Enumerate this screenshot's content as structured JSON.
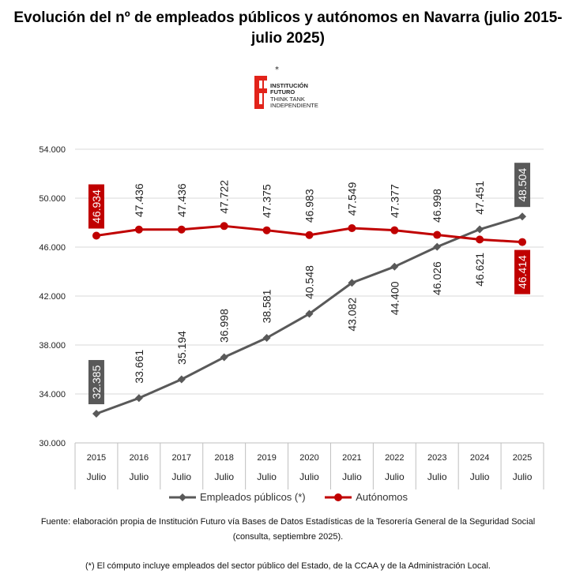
{
  "title": "Evolución del nº de empleados públicos y autónomos en Navarra (julio 2015-julio 2025)",
  "logo": {
    "line1": "INSTITUCIÓN",
    "line2": "FUTURO",
    "line3": "THINK TANK",
    "line4": "INDEPENDIENTE",
    "star": "*",
    "color": "#e2231a"
  },
  "chart_data": {
    "type": "line",
    "categories": [
      "2015",
      "2016",
      "2017",
      "2018",
      "2019",
      "2020",
      "2021",
      "2022",
      "2023",
      "2024",
      "2025"
    ],
    "subcategories": [
      "Julio",
      "Julio",
      "Julio",
      "Julio",
      "Julio",
      "Julio",
      "Julio",
      "Julio",
      "Julio",
      "Julio",
      "Julio"
    ],
    "ylim": [
      30000,
      54000
    ],
    "yticks": [
      30000,
      34000,
      38000,
      42000,
      46000,
      50000,
      54000
    ],
    "ytick_labels": [
      "30.000",
      "34.000",
      "38.000",
      "42.000",
      "46.000",
      "50.000",
      "54.000"
    ],
    "grid": true,
    "legend_position": "bottom",
    "series": [
      {
        "name": "Empleados públicos (*)",
        "color": "#595959",
        "marker": "diamond",
        "values": [
          32385,
          33661,
          35194,
          36998,
          38581,
          40548,
          43082,
          44400,
          46026,
          47451,
          48504
        ],
        "labels": [
          "32.385",
          "33.661",
          "35.194",
          "36.998",
          "38.581",
          "40.548",
          "43.082",
          "44.400",
          "46.026",
          "47.451",
          "48.504"
        ],
        "highlighted": [
          0,
          10
        ]
      },
      {
        "name": "Autónomos",
        "color": "#c00000",
        "marker": "circle",
        "values": [
          46934,
          47436,
          47436,
          47722,
          47375,
          46983,
          47549,
          47377,
          46998,
          46621,
          46414
        ],
        "labels": [
          "46.934",
          "47.436",
          "47.436",
          "47.722",
          "47.375",
          "46.983",
          "47.549",
          "47.377",
          "46.998",
          "46.621",
          "46.414"
        ],
        "highlighted": [
          0,
          10
        ]
      }
    ]
  },
  "legend": {
    "series1": "Empleados públicos (*)",
    "series2": "Autónomos"
  },
  "footnotes": {
    "source": "Fuente: elaboración propia de Institución Futuro vía Bases de Datos Estadísticas de la Tesorería General de la Seguridad Social (consulta, septiembre 2025).",
    "note": "(*) El cómputo incluye empleados del sector público del Estado, de la CCAA y de la Administración Local."
  }
}
